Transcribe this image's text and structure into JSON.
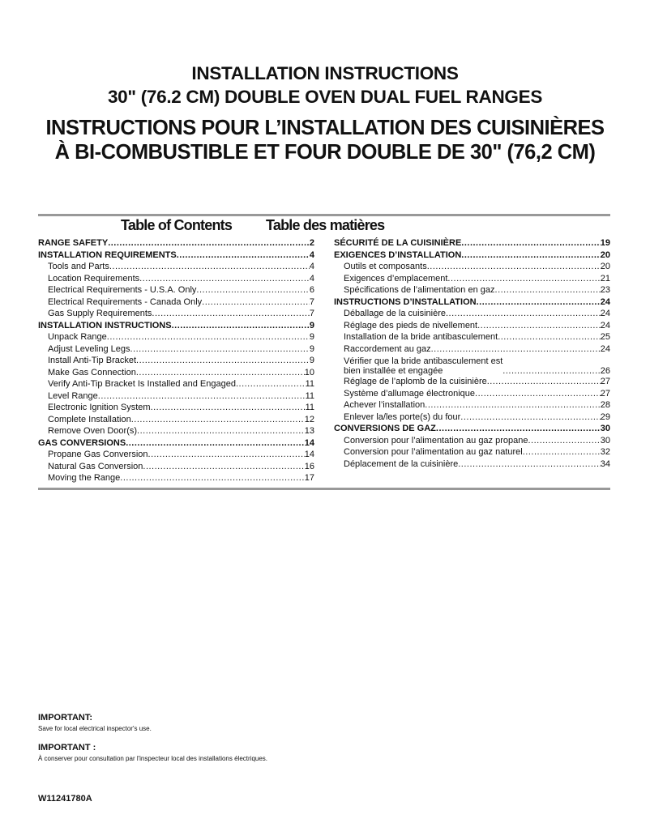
{
  "title": {
    "en_line1": "INSTALLATION INSTRUCTIONS",
    "en_line2": "30\" (76.2 CM) DOUBLE OVEN DUAL FUEL RANGES",
    "fr_line1": "INSTRUCTIONS POUR L’INSTALLATION DES CUISINIÈRES",
    "fr_line2": "À BI-COMBUSTIBLE ET FOUR DOUBLE DE 30\" (76,2 CM)"
  },
  "toc": {
    "en_heading": "Table of Contents",
    "fr_heading": "Table des matières",
    "en": [
      {
        "label": "RANGE SAFETY",
        "page": "2",
        "bold": true
      },
      {
        "label": "INSTALLATION REQUIREMENTS",
        "page": "4",
        "bold": true
      },
      {
        "label": "Tools and Parts",
        "page": "4"
      },
      {
        "label": "Location Requirements",
        "page": "4"
      },
      {
        "label": "Electrical Requirements - U.S.A. Only",
        "page": "6"
      },
      {
        "label": "Electrical Requirements - Canada Only",
        "page": "7"
      },
      {
        "label": "Gas Supply Requirements",
        "page": "7"
      },
      {
        "label": "INSTALLATION INSTRUCTIONS",
        "page": "9",
        "bold": true
      },
      {
        "label": "Unpack Range",
        "page": "9"
      },
      {
        "label": "Adjust Leveling Legs",
        "page": "9"
      },
      {
        "label": "Install Anti-Tip Bracket",
        "page": "9"
      },
      {
        "label": "Make Gas Connection",
        "page": "10"
      },
      {
        "label": "Verify Anti-Tip Bracket Is Installed and Engaged",
        "page": "11"
      },
      {
        "label": "Level Range",
        "page": "11"
      },
      {
        "label": "Electronic Ignition System",
        "page": "11"
      },
      {
        "label": "Complete Installation",
        "page": "12"
      },
      {
        "label": "Remove Oven Door(s)",
        "page": "13"
      },
      {
        "label": "GAS CONVERSIONS",
        "page": "14",
        "bold": true
      },
      {
        "label": "Propane Gas Conversion",
        "page": "14"
      },
      {
        "label": "Natural Gas Conversion",
        "page": "16"
      },
      {
        "label": "Moving the Range",
        "page": "17"
      }
    ],
    "fr": [
      {
        "label": "SÉCURITÉ DE LA CUISINIÈRE",
        "page": "19",
        "bold": true
      },
      {
        "label": "EXIGENCES D’INSTALLATION",
        "page": "20",
        "bold": true
      },
      {
        "label": "Outils et composants",
        "page": "20"
      },
      {
        "label": "Exigences d’emplacement",
        "page": "21"
      },
      {
        "label": "Spécifications de l’alimentation en gaz",
        "page": "23"
      },
      {
        "label": "INSTRUCTIONS D’INSTALLATION",
        "page": "24",
        "bold": true
      },
      {
        "label": "Déballage de la cuisinière",
        "page": "24"
      },
      {
        "label": "Réglage des pieds de nivellement",
        "page": "24"
      },
      {
        "label": "Installation de la bride antibasculement",
        "page": "25"
      },
      {
        "label": "Raccordement au gaz",
        "page": "24"
      },
      {
        "label": "Vérifier que la bride antibasculement est",
        "label2": "bien installée et engagée",
        "page": "26"
      },
      {
        "label": "Réglage de l’aplomb de la cuisinière",
        "page": "27"
      },
      {
        "label": "Système d’allumage électronique",
        "page": "27"
      },
      {
        "label": "Achever l’installation",
        "page": "28"
      },
      {
        "label": "Enlever la/les porte(s) du four",
        "page": "29"
      },
      {
        "label": "CONVERSIONS DE GAZ",
        "page": "30",
        "bold": true
      },
      {
        "label": "Conversion pour l’alimentation au gaz propane",
        "page": "30"
      },
      {
        "label": "Conversion pour l’alimentation au gaz naturel",
        "page": "32"
      },
      {
        "label": "Déplacement de la cuisinière",
        "page": "34"
      }
    ]
  },
  "important_en": {
    "heading": "IMPORTANT:",
    "text": "Save for local electrical inspector's use."
  },
  "important_fr": {
    "heading": "IMPORTANT :",
    "text": "À conserver pour consultation par l'inspecteur local des installations électriques."
  },
  "doc_code": "W11241780A"
}
